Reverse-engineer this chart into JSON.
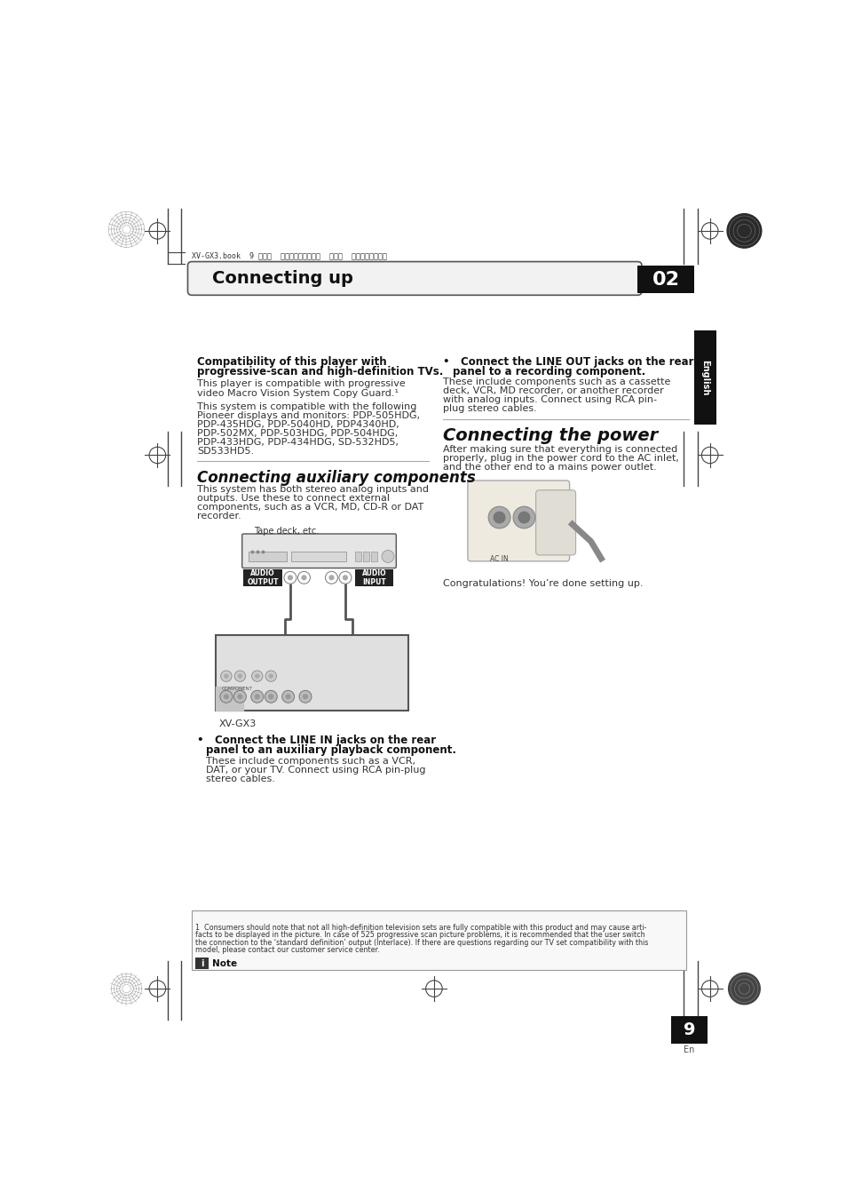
{
  "bg_color": "#ffffff",
  "page_width": 9.54,
  "page_height": 13.51,
  "header_text": "Connecting up",
  "header_number": "02",
  "top_registration_text": "XV-GX3.book  9 ページ  ２００５年７月６日  水曜日  午前１１晎４２分",
  "section1_title_line1": "Compatibility of this player with",
  "section1_title_line2": "progressive-scan and high-definition TVs.",
  "section1_body1_line1": "This player is compatible with progressive",
  "section1_body1_line2": "video Macro Vision System Copy Guard.¹",
  "section1_body2_line1": "This system is compatible with the following",
  "section1_body2_line2": "Pioneer displays and monitors: PDP-505HDG,",
  "section1_body2_line3": "PDP-435HDG, PDP-5040HD, PDP4340HD,",
  "section1_body2_line4": "PDP-502MX, PDP-503HDG, PDP-504HDG,",
  "section1_body2_line5": "PDP-433HDG, PDP-434HDG, SD-532HD5,",
  "section1_body2_line6": "SD533HD5.",
  "section2_title": "Connecting auxiliary components",
  "section2_body_line1": "This system has both stereo analog inputs and",
  "section2_body_line2": "outputs. Use these to connect external",
  "section2_body_line3": "components, such as a VCR, MD, CD-R or DAT",
  "section2_body_line4": "recorder.",
  "tape_label": "Tape deck, etc.",
  "audio_output_label": "AUDIO\nOUTPUT",
  "audio_input_label": "AUDIO\nINPUT",
  "xvgx3_label": "XV-GX3",
  "bullet1_title_line1": "•   Connect the LINE IN jacks on the rear",
  "bullet1_title_line2": "panel to an auxiliary playback component.",
  "bullet1_body_line1": "These include components such as a VCR,",
  "bullet1_body_line2": "DAT, or your TV. Connect using RCA pin-plug",
  "bullet1_body_line3": "stereo cables.",
  "bullet_right_title_line1": "•   Connect the LINE OUT jacks on the rear",
  "bullet_right_title_line2": "panel to a recording component.",
  "bullet_right_body_line1": "These include components such as a cassette",
  "bullet_right_body_line2": "deck, VCR, MD recorder, or another recorder",
  "bullet_right_body_line3": "with analog inputs. Connect using RCA pin-",
  "bullet_right_body_line4": "plug stereo cables.",
  "section4_title": "Connecting the power",
  "section4_body_line1": "After making sure that everything is connected",
  "section4_body_line2": "properly, plug in the power cord to the AC inlet,",
  "section4_body_line3": "and the other end to a mains power outlet.",
  "congratulations": "Congratulations! You’re done setting up.",
  "note_title": "Note",
  "note_body_line1": "1  Consumers should note that not all high-definition television sets are fully compatible with this product and may cause arti-",
  "note_body_line2": "facts to be displayed in the picture. In case of 525 progressive scan picture problems, it is recommended that the user switch",
  "note_body_line3": "the connection to the ‘standard definition’ output (Interlace). If there are questions regarding our TV set compatibility with this",
  "note_body_line4": "model, please contact our customer service center.",
  "english_label": "English",
  "page_number": "9",
  "page_number_sub": "En"
}
